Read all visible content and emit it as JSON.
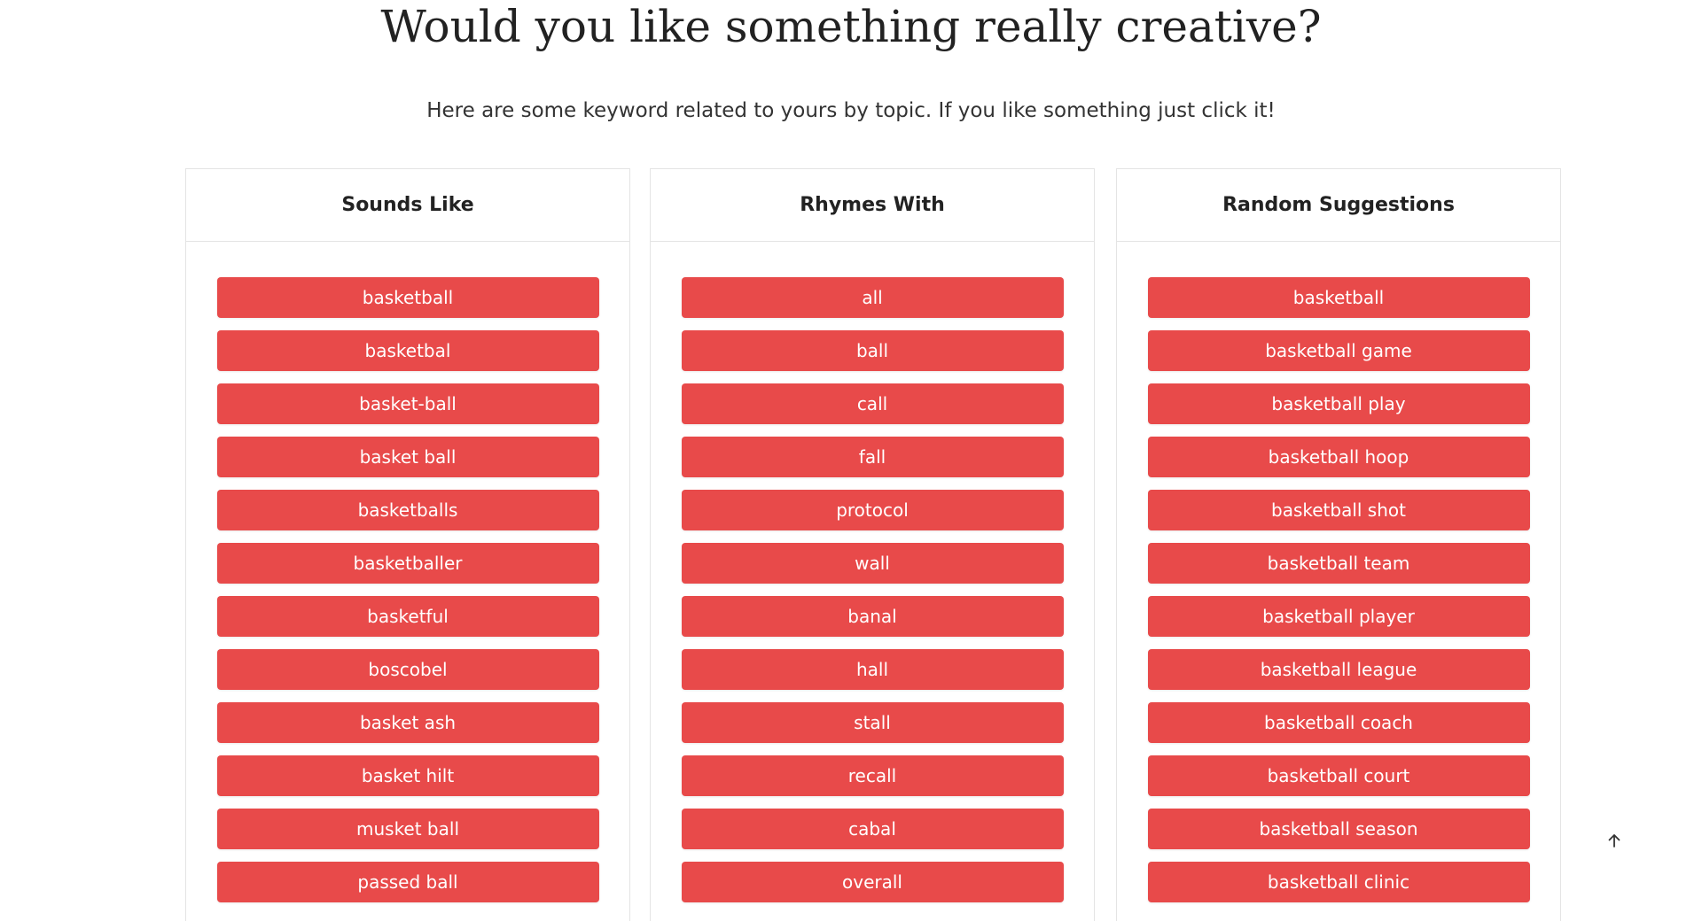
{
  "headline": "Would you like something really creative?",
  "subtitle": "Here are some keyword related to yours by topic. If you like something just click it!",
  "colors": {
    "button_bg": "#e84a4a",
    "button_text": "#ffffff",
    "card_border": "#e4e4e4"
  },
  "columns": [
    {
      "title": "Sounds Like",
      "items": [
        "basketball",
        "basketbal",
        "basket-ball",
        "basket ball",
        "basketballs",
        "basketballer",
        "basketful",
        "boscobel",
        "basket ash",
        "basket hilt",
        "musket ball",
        "passed ball"
      ]
    },
    {
      "title": "Rhymes With",
      "items": [
        "all",
        "ball",
        "call",
        "fall",
        "protocol",
        "wall",
        "banal",
        "hall",
        "stall",
        "recall",
        "cabal",
        "overall"
      ]
    },
    {
      "title": "Random Suggestions",
      "items": [
        "basketball",
        "basketball game",
        "basketball play",
        "basketball hoop",
        "basketball shot",
        "basketball team",
        "basketball player",
        "basketball league",
        "basketball coach",
        "basketball court",
        "basketball season",
        "basketball clinic"
      ]
    }
  ],
  "scroll_top_icon": "arrow-up-icon"
}
